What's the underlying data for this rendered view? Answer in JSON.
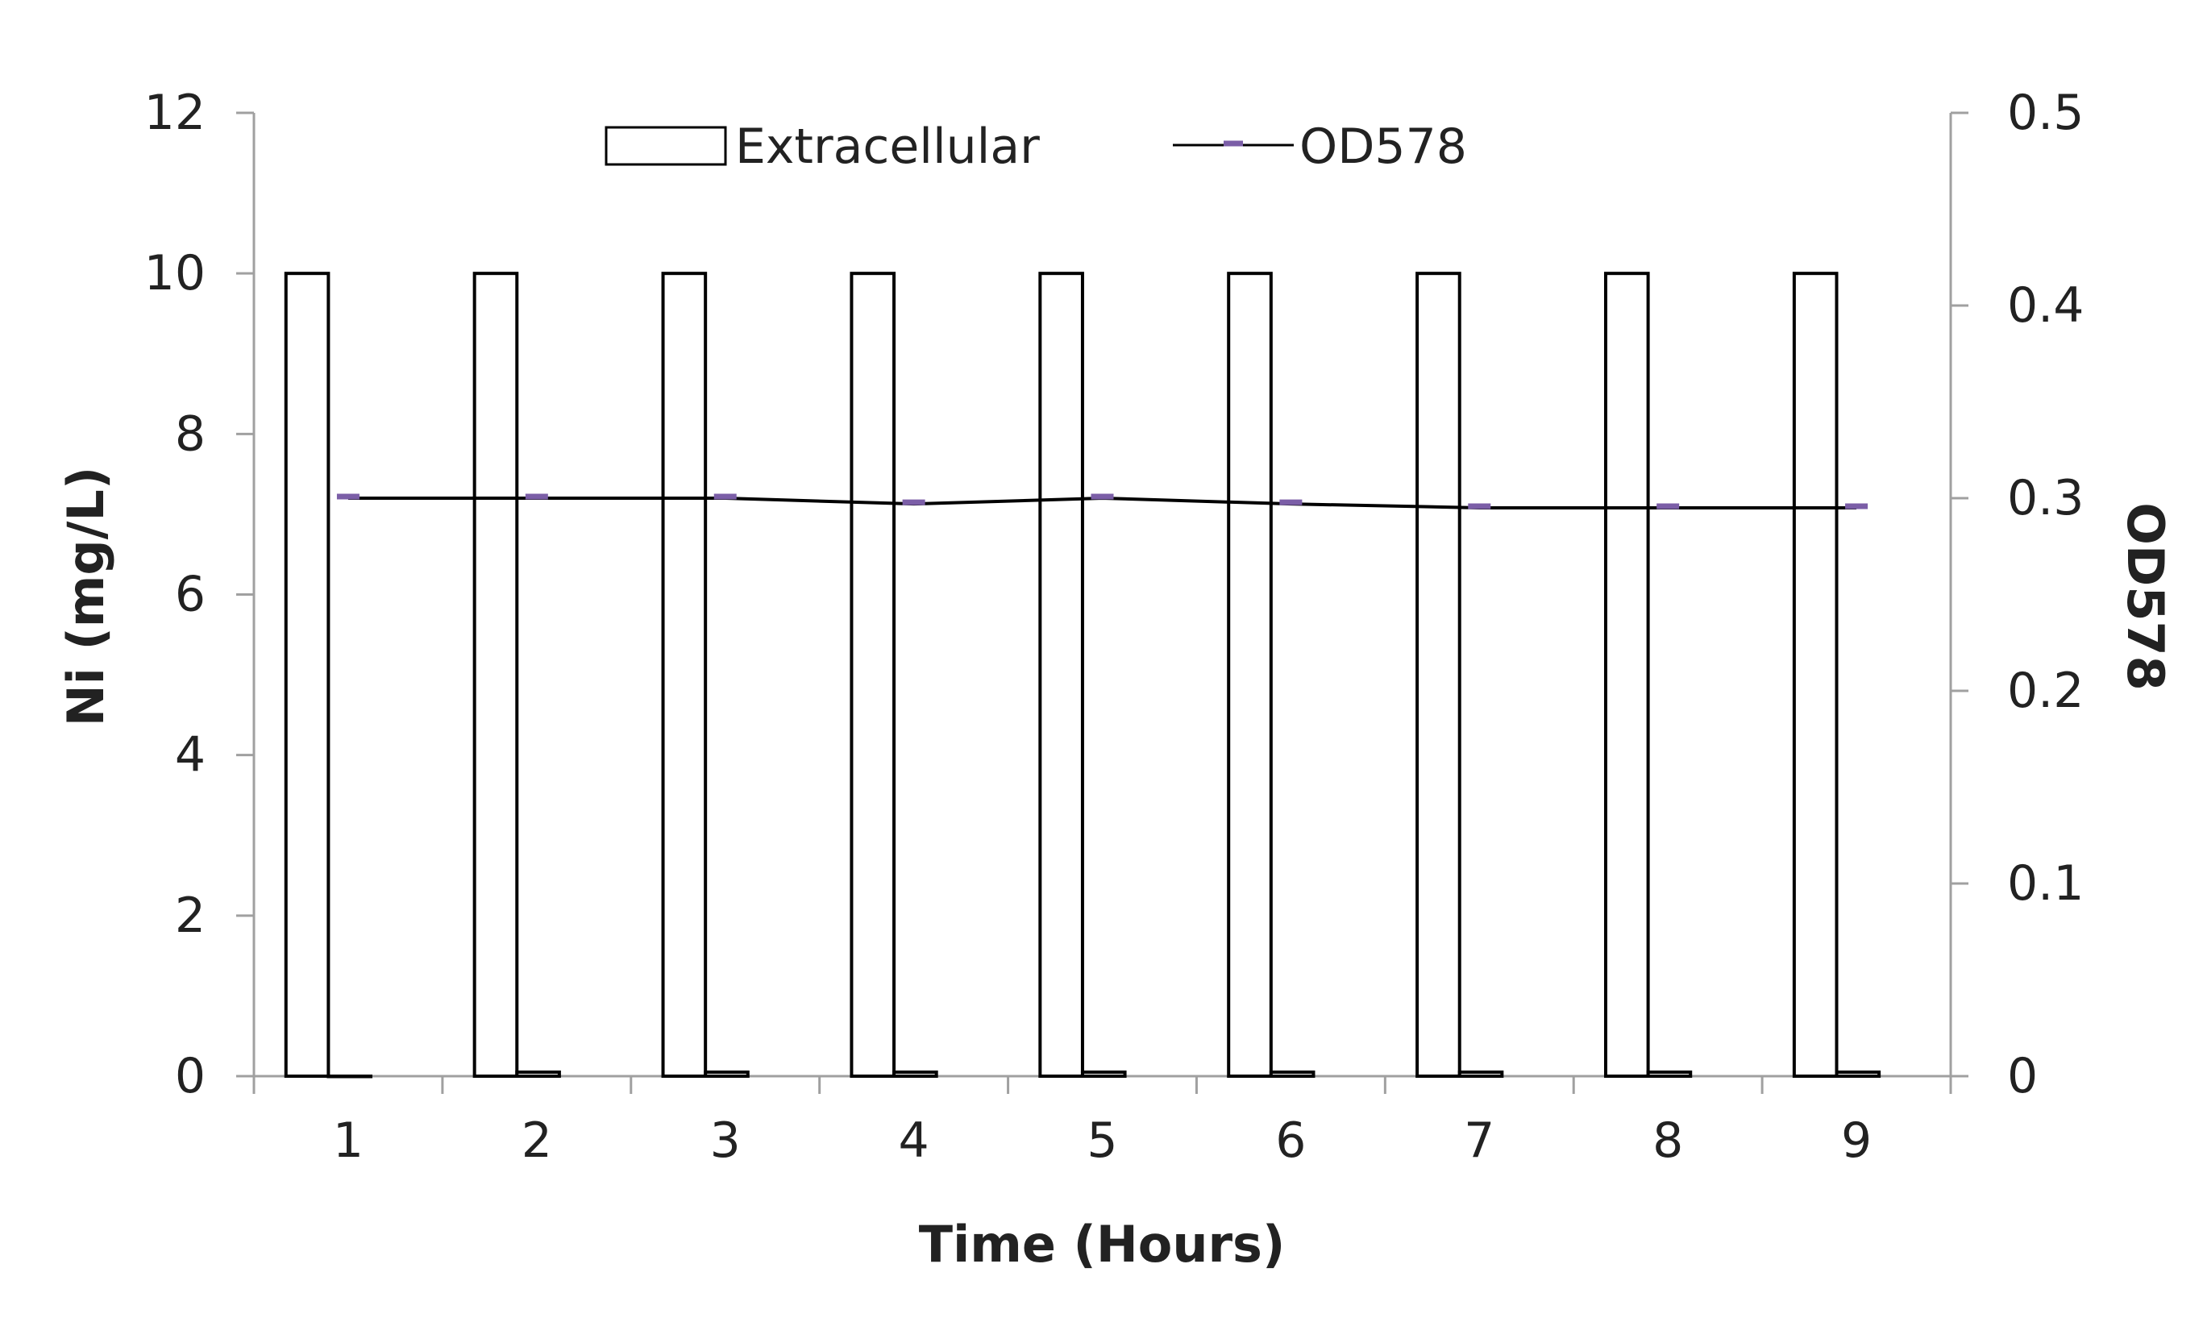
{
  "chart_data": {
    "type": "bar",
    "title": "",
    "xlabel": "Time (Hours)",
    "ylabel": "Ni (mg/L)",
    "y2label": "OD578",
    "categories": [
      "1",
      "2",
      "3",
      "4",
      "5",
      "6",
      "7",
      "8",
      "9"
    ],
    "ylim": [
      0,
      12
    ],
    "y_ticks": [
      "0",
      "2",
      "4",
      "6",
      "8",
      "10",
      "12"
    ],
    "y2lim": [
      0,
      0.5
    ],
    "y2_ticks": [
      "0",
      "0.1",
      "0.2",
      "0.3",
      "0.4",
      "0.5"
    ],
    "series": [
      {
        "name": "Extracellular",
        "type": "bar",
        "axis": "left",
        "values": [
          10,
          10,
          10,
          10,
          10,
          10,
          10,
          10,
          10
        ]
      },
      {
        "name": "",
        "type": "bar",
        "axis": "left",
        "values": [
          0,
          0.05,
          0.05,
          0.05,
          0.05,
          0.05,
          0.05,
          0.05,
          0.05
        ]
      },
      {
        "name": "OD578",
        "type": "line",
        "axis": "right",
        "values": [
          0.3,
          0.3,
          0.3,
          0.297,
          0.3,
          0.297,
          0.295,
          0.295,
          0.295
        ]
      }
    ],
    "legend_position": "top-center",
    "grid": false,
    "colors": {
      "bar_fill": "#ffffff",
      "bar_stroke": "#000000",
      "line": "#000000",
      "marker": "#7b5ea7",
      "axis": "#a0a0a0"
    }
  }
}
